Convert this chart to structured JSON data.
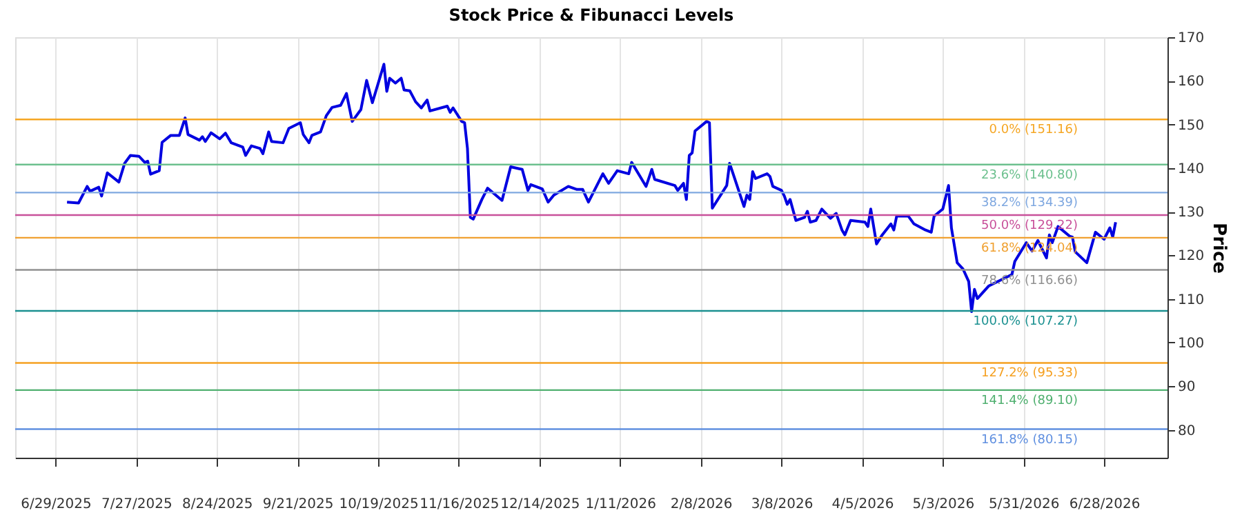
{
  "chart_data": {
    "type": "line",
    "title": "Stock Price & Fibunacci Levels",
    "ylabel": "Price",
    "x": [
      "2025-07-03",
      "2025-07-07",
      "2025-07-10",
      "2025-07-11",
      "2025-07-14",
      "2025-07-15",
      "2025-07-17",
      "2025-07-21",
      "2025-07-23",
      "2025-07-25",
      "2025-07-28",
      "2025-07-30",
      "2025-07-31",
      "2025-08-01",
      "2025-08-04",
      "2025-08-05",
      "2025-08-08",
      "2025-08-11",
      "2025-08-13",
      "2025-08-14",
      "2025-08-18",
      "2025-08-19",
      "2025-08-20",
      "2025-08-22",
      "2025-08-25",
      "2025-08-27",
      "2025-08-29",
      "2025-09-02",
      "2025-09-03",
      "2025-09-05",
      "2025-09-08",
      "2025-09-09",
      "2025-09-11",
      "2025-09-12",
      "2025-09-16",
      "2025-09-18",
      "2025-09-22",
      "2025-09-23",
      "2025-09-25",
      "2025-09-26",
      "2025-09-29",
      "2025-10-01",
      "2025-10-03",
      "2025-10-06",
      "2025-10-08",
      "2025-10-10",
      "2025-10-13",
      "2025-10-15",
      "2025-10-17",
      "2025-10-21",
      "2025-10-22",
      "2025-10-23",
      "2025-10-25",
      "2025-10-27",
      "2025-10-28",
      "2025-10-30",
      "2025-11-01",
      "2025-11-03",
      "2025-11-05",
      "2025-11-06",
      "2025-11-12",
      "2025-11-13",
      "2025-11-14",
      "2025-11-17",
      "2025-11-18",
      "2025-11-19",
      "2025-11-20",
      "2025-11-21",
      "2025-11-24",
      "2025-11-26",
      "2025-12-01",
      "2025-12-04",
      "2025-12-08",
      "2025-12-10",
      "2025-12-11",
      "2025-12-15",
      "2025-12-17",
      "2025-12-19",
      "2025-12-24",
      "2025-12-27",
      "2025-12-29",
      "2025-12-31",
      "2026-01-05",
      "2026-01-07",
      "2026-01-10",
      "2026-01-14",
      "2026-01-15",
      "2026-01-20",
      "2026-01-22",
      "2026-01-23",
      "2026-01-30",
      "2026-01-31",
      "2026-02-02",
      "2026-02-03",
      "2026-02-04",
      "2026-02-05",
      "2026-02-06",
      "2026-02-10",
      "2026-02-11",
      "2026-02-12",
      "2026-02-17",
      "2026-02-18",
      "2026-02-23",
      "2026-02-24",
      "2026-02-25",
      "2026-02-26",
      "2026-02-27",
      "2026-03-03",
      "2026-03-04",
      "2026-03-05",
      "2026-03-08",
      "2026-03-09",
      "2026-03-10",
      "2026-03-11",
      "2026-03-13",
      "2026-03-16",
      "2026-03-17",
      "2026-03-18",
      "2026-03-20",
      "2026-03-22",
      "2026-03-25",
      "2026-03-27",
      "2026-03-29",
      "2026-03-30",
      "2026-04-01",
      "2026-04-06",
      "2026-04-07",
      "2026-04-08",
      "2026-04-10",
      "2026-04-12",
      "2026-04-15",
      "2026-04-16",
      "2026-04-17",
      "2026-04-21",
      "2026-04-23",
      "2026-04-27",
      "2026-04-29",
      "2026-04-30",
      "2026-05-03",
      "2026-05-05",
      "2026-05-06",
      "2026-05-08",
      "2026-05-10",
      "2026-05-12",
      "2026-05-13",
      "2026-05-14",
      "2026-05-15",
      "2026-05-19",
      "2026-05-27",
      "2026-05-28",
      "2026-06-01",
      "2026-06-03",
      "2026-06-05",
      "2026-06-08",
      "2026-06-09",
      "2026-06-10",
      "2026-06-12",
      "2026-06-16",
      "2026-06-17",
      "2026-06-18",
      "2026-06-22",
      "2026-06-25",
      "2026-06-28",
      "2026-06-30",
      "2026-07-01",
      "2026-07-02"
    ],
    "series": [
      {
        "color": "#0000e0",
        "values": [
          132.2,
          132.0,
          135.8,
          134.7,
          135.6,
          133.6,
          138.9,
          136.8,
          141.1,
          142.9,
          142.7,
          141.3,
          141.6,
          138.6,
          139.4,
          145.9,
          147.5,
          147.5,
          151.5,
          147.7,
          146.4,
          147.2,
          146.1,
          148.1,
          146.7,
          148.0,
          145.8,
          144.8,
          142.9,
          145.1,
          144.5,
          143.3,
          148.3,
          146.1,
          145.8,
          149.1,
          150.4,
          147.7,
          145.8,
          147.5,
          148.3,
          152.0,
          153.9,
          154.4,
          157.1,
          150.7,
          153.4,
          160.1,
          155.0,
          163.8,
          157.6,
          160.6,
          159.5,
          160.6,
          157.9,
          157.7,
          155.2,
          153.8,
          155.6,
          153.1,
          154.2,
          152.8,
          153.8,
          150.7,
          150.4,
          144.5,
          128.7,
          128.3,
          132.8,
          135.4,
          132.6,
          140.3,
          139.7,
          134.9,
          136.2,
          135.2,
          132.2,
          133.8,
          135.8,
          135.1,
          135.1,
          132.2,
          138.7,
          136.5,
          139.4,
          138.7,
          141.3,
          135.8,
          139.7,
          137.4,
          136.0,
          134.9,
          136.5,
          132.8,
          142.9,
          143.5,
          148.5,
          150.7,
          150.4,
          130.8,
          136.0,
          141.1,
          131.2,
          133.8,
          132.8,
          139.2,
          137.6,
          138.7,
          138.1,
          135.8,
          134.9,
          133.6,
          131.7,
          132.8,
          128.0,
          128.7,
          130.1,
          127.6,
          128.0,
          130.6,
          128.5,
          129.6,
          125.8,
          124.7,
          128.0,
          127.6,
          126.6,
          130.6,
          122.6,
          124.7,
          127.2,
          125.8,
          129.0,
          129.0,
          127.2,
          125.8,
          125.3,
          129.0,
          130.6,
          136.0,
          126.3,
          118.3,
          116.9,
          114.0,
          107.1,
          112.2,
          110.1,
          113.0,
          115.6,
          118.6,
          122.9,
          121.0,
          123.4,
          119.4,
          124.7,
          122.9,
          126.6,
          124.4,
          124.2,
          120.8,
          118.3,
          125.3,
          123.7,
          126.3,
          124.2,
          127.6
        ]
      }
    ],
    "xlim": [
      "2025-06-15",
      "2026-07-20"
    ],
    "xticks": [
      {
        "value": "2025-06-29",
        "label": "6/29/2025"
      },
      {
        "value": "2025-07-27",
        "label": "7/27/2025"
      },
      {
        "value": "2025-08-24",
        "label": "8/24/2025"
      },
      {
        "value": "2025-09-21",
        "label": "9/21/2025"
      },
      {
        "value": "2025-10-19",
        "label": "10/19/2025"
      },
      {
        "value": "2025-11-16",
        "label": "11/16/2025"
      },
      {
        "value": "2025-12-14",
        "label": "12/14/2025"
      },
      {
        "value": "2026-01-11",
        "label": "1/11/2026"
      },
      {
        "value": "2026-02-08",
        "label": "2/8/2026"
      },
      {
        "value": "2026-03-08",
        "label": "3/8/2026"
      },
      {
        "value": "2026-04-05",
        "label": "4/5/2026"
      },
      {
        "value": "2026-05-03",
        "label": "5/3/2026"
      },
      {
        "value": "2026-05-31",
        "label": "5/31/2026"
      },
      {
        "value": "2026-06-28",
        "label": "6/28/2026"
      }
    ],
    "ylim": [
      73.6,
      170
    ],
    "yticks": [
      80,
      90,
      100,
      110,
      120,
      130,
      140,
      150,
      160,
      170
    ],
    "grid": "x",
    "marker": "none",
    "line_style": "solid",
    "ref_lines": [
      {
        "axis": "y",
        "value": 151.16,
        "label": "0.0% (151.16)",
        "color": "#f5a623"
      },
      {
        "axis": "y",
        "value": 140.8,
        "label": "23.6% (140.80)",
        "color": "#6cc08e"
      },
      {
        "axis": "y",
        "value": 134.39,
        "label": "38.2% (134.39)",
        "color": "#7fa8e0"
      },
      {
        "axis": "y",
        "value": 129.22,
        "label": "50.0% (129.22)",
        "color": "#c8509a"
      },
      {
        "axis": "y",
        "value": 124.04,
        "label": "61.8% (124.04)",
        "color": "#f0a030"
      },
      {
        "axis": "y",
        "value": 116.66,
        "label": "78.6% (116.66)",
        "color": "#909090"
      },
      {
        "axis": "y",
        "value": 107.27,
        "label": "100.0% (107.27)",
        "color": "#1a9090"
      },
      {
        "axis": "y",
        "value": 95.33,
        "label": "127.2% (95.33)",
        "color": "#f5a020"
      },
      {
        "axis": "y",
        "value": 89.1,
        "label": "141.4% (89.10)",
        "color": "#50b070"
      },
      {
        "axis": "y",
        "value": 80.15,
        "label": "161.8% (80.15)",
        "color": "#6090e0"
      }
    ]
  }
}
